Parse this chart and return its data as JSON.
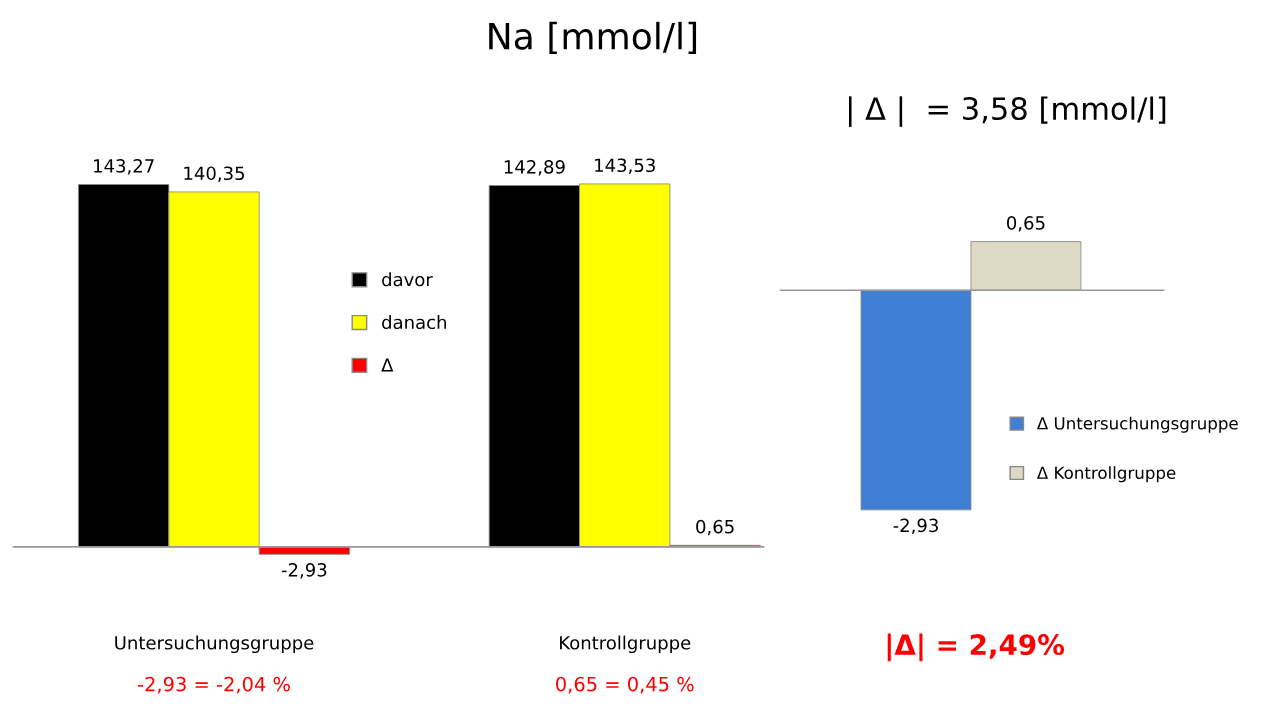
{
  "chart_data": [
    {
      "type": "bar",
      "title": "Na [mmol/l]",
      "categories": [
        "Untersuchungsgruppe",
        "Kontrollgruppe"
      ],
      "legend": "center",
      "series": [
        {
          "name": "davor",
          "color": "#000000",
          "values": [
            143.27,
            142.89
          ],
          "value_labels": [
            "143,27",
            "142,89"
          ]
        },
        {
          "name": "danach",
          "color": "#ffff00",
          "values": [
            140.35,
            143.53
          ],
          "value_labels": [
            "140,35",
            "143,53"
          ]
        },
        {
          "name": "Δ",
          "color": "#ff0000",
          "values": [
            -2.93,
            0.65
          ],
          "value_labels": [
            "-2,93",
            "0,65"
          ]
        }
      ],
      "annotations": [
        "-2,93 = -2,04 %",
        "0,65 = 0,45 %"
      ]
    },
    {
      "type": "bar",
      "title": "| Δ |  = 3,58 [mmol/l]",
      "categories": [
        null
      ],
      "legend": "right",
      "series": [
        {
          "name": "Δ Untersuchungsgruppe",
          "color": "#3f7fd4",
          "values": [
            -2.93
          ],
          "value_labels": [
            "-2,93"
          ]
        },
        {
          "name": "Δ Kontrollgruppe",
          "color": "#ddd9c3",
          "values": [
            0.65
          ],
          "value_labels": [
            "0,65"
          ]
        }
      ],
      "annotations": [
        "|Δ| = 2,49%"
      ]
    }
  ]
}
